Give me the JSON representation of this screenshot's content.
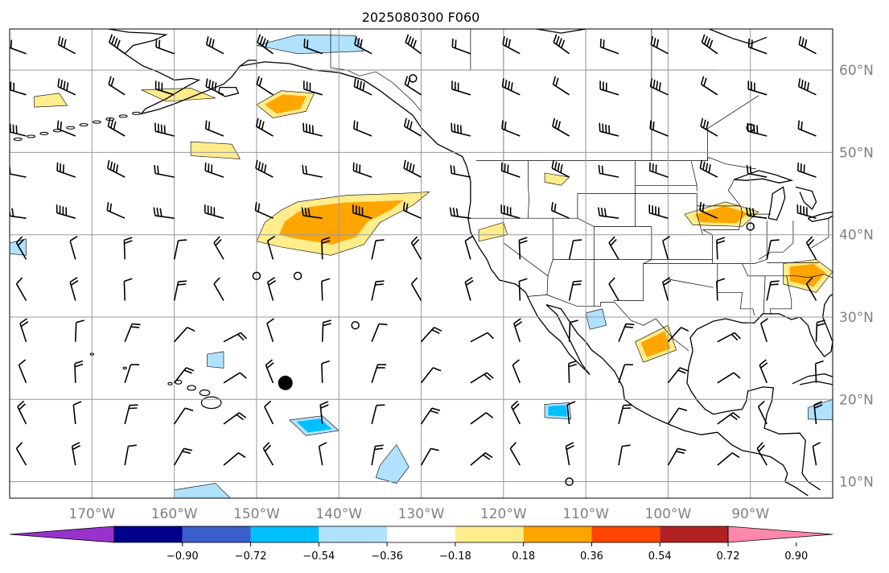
{
  "title": "2025080300 F060",
  "map": {
    "projection": "plate-carree",
    "lon_range": [
      -180,
      -80
    ],
    "lat_range": [
      8,
      65
    ],
    "gridlines": true,
    "lat_labels": [
      {
        "lat": 60,
        "text": "60°N"
      },
      {
        "lat": 50,
        "text": "50°N"
      },
      {
        "lat": 40,
        "text": "40°N"
      },
      {
        "lat": 30,
        "text": "30°N"
      },
      {
        "lat": 20,
        "text": "20°N"
      },
      {
        "lat": 10,
        "text": "10°N"
      }
    ],
    "lon_labels": [
      {
        "lon": -170,
        "text": "170°W"
      },
      {
        "lon": -160,
        "text": "160°W"
      },
      {
        "lon": -150,
        "text": "150°W"
      },
      {
        "lon": -140,
        "text": "140°W"
      },
      {
        "lon": -130,
        "text": "130°W"
      },
      {
        "lon": -120,
        "text": "120°W"
      },
      {
        "lon": -110,
        "text": "110°W"
      },
      {
        "lon": -100,
        "text": "100°W"
      },
      {
        "lon": -90,
        "text": "90°W"
      }
    ]
  },
  "colorbar": {
    "colors": [
      "#9932cc",
      "#00008b",
      "#3a5fcd",
      "#00bfff",
      "#b0e2ff",
      "#ffffff",
      "#ffec8b",
      "#ffa500",
      "#ff4500",
      "#b22222",
      "#ff88aa"
    ],
    "ticks": [
      {
        "v": -0.9,
        "text": "−0.90"
      },
      {
        "v": -0.72,
        "text": "−0.72"
      },
      {
        "v": -0.54,
        "text": "−0.54"
      },
      {
        "v": -0.36,
        "text": "−0.36"
      },
      {
        "v": -0.18,
        "text": "−0.18"
      },
      {
        "v": 0.18,
        "text": "0.18"
      },
      {
        "v": 0.36,
        "text": "0.36"
      },
      {
        "v": 0.54,
        "text": "0.54"
      },
      {
        "v": 0.72,
        "text": "0.72"
      },
      {
        "v": 0.9,
        "text": "0.90"
      }
    ]
  },
  "marker": {
    "lon": -146.5,
    "lat": 22.0
  },
  "positive_anomalies": [
    {
      "name": "central-pacific-blob",
      "level": 0.36,
      "points": [
        [
          -145,
          44
        ],
        [
          -139,
          44.8
        ],
        [
          -133,
          45
        ],
        [
          -129,
          45.2
        ],
        [
          -131,
          43.6
        ],
        [
          -135,
          41.5
        ],
        [
          -137,
          38.8
        ],
        [
          -141,
          37.5
        ],
        [
          -147,
          38.5
        ],
        [
          -150,
          39.2
        ],
        [
          -149,
          41.5
        ],
        [
          -147,
          43
        ]
      ]
    },
    {
      "name": "alaska-gulf",
      "level": 0.36,
      "points": [
        [
          -150,
          55.8
        ],
        [
          -147,
          57.5
        ],
        [
          -143,
          57.2
        ],
        [
          -144,
          55.0
        ],
        [
          -148,
          54.2
        ]
      ]
    },
    {
      "name": "alaska-west",
      "level": 0.18,
      "points": [
        [
          -164,
          57.6
        ],
        [
          -158,
          57.8
        ],
        [
          -155,
          56.6
        ],
        [
          -161,
          56.2
        ]
      ]
    },
    {
      "name": "aleutian",
      "level": 0.18,
      "points": [
        [
          -177,
          56.8
        ],
        [
          -174,
          57.2
        ],
        [
          -173,
          55.7
        ],
        [
          -177,
          55.5
        ]
      ]
    },
    {
      "name": "pacific-north",
      "level": 0.18,
      "points": [
        [
          -158,
          51.3
        ],
        [
          -153,
          51
        ],
        [
          -152,
          49.2
        ],
        [
          -158,
          49.6
        ]
      ]
    },
    {
      "name": "upper-midwest",
      "level": 0.36,
      "points": [
        [
          -98,
          42.5
        ],
        [
          -93,
          44
        ],
        [
          -89,
          42.8
        ],
        [
          -91,
          41
        ],
        [
          -97,
          41.2
        ]
      ]
    },
    {
      "name": "southeast-us",
      "level": 0.36,
      "points": [
        [
          -86,
          36.5
        ],
        [
          -82,
          37
        ],
        [
          -80,
          35.5
        ],
        [
          -82,
          33
        ],
        [
          -86,
          34
        ]
      ]
    },
    {
      "name": "mexico-west",
      "level": 0.36,
      "points": [
        [
          -104,
          27
        ],
        [
          -100,
          29
        ],
        [
          -99,
          26
        ],
        [
          -103,
          24.5
        ]
      ]
    },
    {
      "name": "california",
      "level": 0.18,
      "points": [
        [
          -123,
          40.6
        ],
        [
          -120,
          41.5
        ],
        [
          -119.5,
          40
        ],
        [
          -123,
          39.2
        ]
      ]
    },
    {
      "name": "montana",
      "level": 0.18,
      "points": [
        [
          -115,
          47.5
        ],
        [
          -112,
          47
        ],
        [
          -113,
          46
        ],
        [
          -115,
          46.4
        ]
      ]
    }
  ],
  "negative_anomalies": [
    {
      "name": "bering",
      "level": -0.18,
      "points": [
        [
          -150,
          63
        ],
        [
          -145,
          64.3
        ],
        [
          -138,
          64.2
        ],
        [
          -137,
          62.3
        ],
        [
          -145,
          62
        ]
      ]
    },
    {
      "name": "hawaii-south",
      "level": -0.36,
      "points": [
        [
          -146,
          17.5
        ],
        [
          -142,
          18
        ],
        [
          -140,
          16.2
        ],
        [
          -144,
          15.6
        ]
      ]
    },
    {
      "name": "hawaii-north",
      "level": -0.18,
      "points": [
        [
          -156,
          25.5
        ],
        [
          -154,
          25.8
        ],
        [
          -154,
          23.8
        ],
        [
          -156,
          24
        ]
      ]
    },
    {
      "name": "tropics-130",
      "level": -0.18,
      "points": [
        [
          -135,
          12
        ],
        [
          -133,
          14.5
        ],
        [
          -131.5,
          11.8
        ],
        [
          -133,
          9.8
        ],
        [
          -135.5,
          10.5
        ]
      ]
    },
    {
      "name": "baja",
      "level": -0.18,
      "points": [
        [
          -110,
          30.5
        ],
        [
          -108,
          31
        ],
        [
          -107.5,
          29
        ],
        [
          -109.5,
          28.5
        ]
      ]
    },
    {
      "name": "mexico-south",
      "level": -0.36,
      "points": [
        [
          -115,
          19.4
        ],
        [
          -112,
          19.6
        ],
        [
          -111.8,
          17.6
        ],
        [
          -115,
          17.8
        ]
      ]
    },
    {
      "name": "tropics-south",
      "level": -0.18,
      "points": [
        [
          -160,
          9
        ],
        [
          -155,
          9.8
        ],
        [
          -153,
          7.8
        ],
        [
          -160,
          7.8
        ]
      ]
    },
    {
      "name": "caribbean",
      "level": -0.18,
      "points": [
        [
          -83,
          19
        ],
        [
          -80,
          20
        ],
        [
          -80,
          17.5
        ],
        [
          -83,
          17.6
        ]
      ]
    },
    {
      "name": "pacific-west",
      "level": -0.18,
      "points": [
        [
          -180,
          39
        ],
        [
          -178,
          39.5
        ],
        [
          -178,
          37.5
        ],
        [
          -180,
          37.7
        ]
      ]
    }
  ],
  "calm_markers": [
    {
      "lon": -131,
      "lat": 59
    },
    {
      "lon": -150,
      "lat": 35
    },
    {
      "lon": -145,
      "lat": 35
    },
    {
      "lon": -138,
      "lat": 29
    },
    {
      "lon": -90,
      "lat": 53
    },
    {
      "lon": -90,
      "lat": 41
    },
    {
      "lon": -112,
      "lat": 10
    }
  ]
}
